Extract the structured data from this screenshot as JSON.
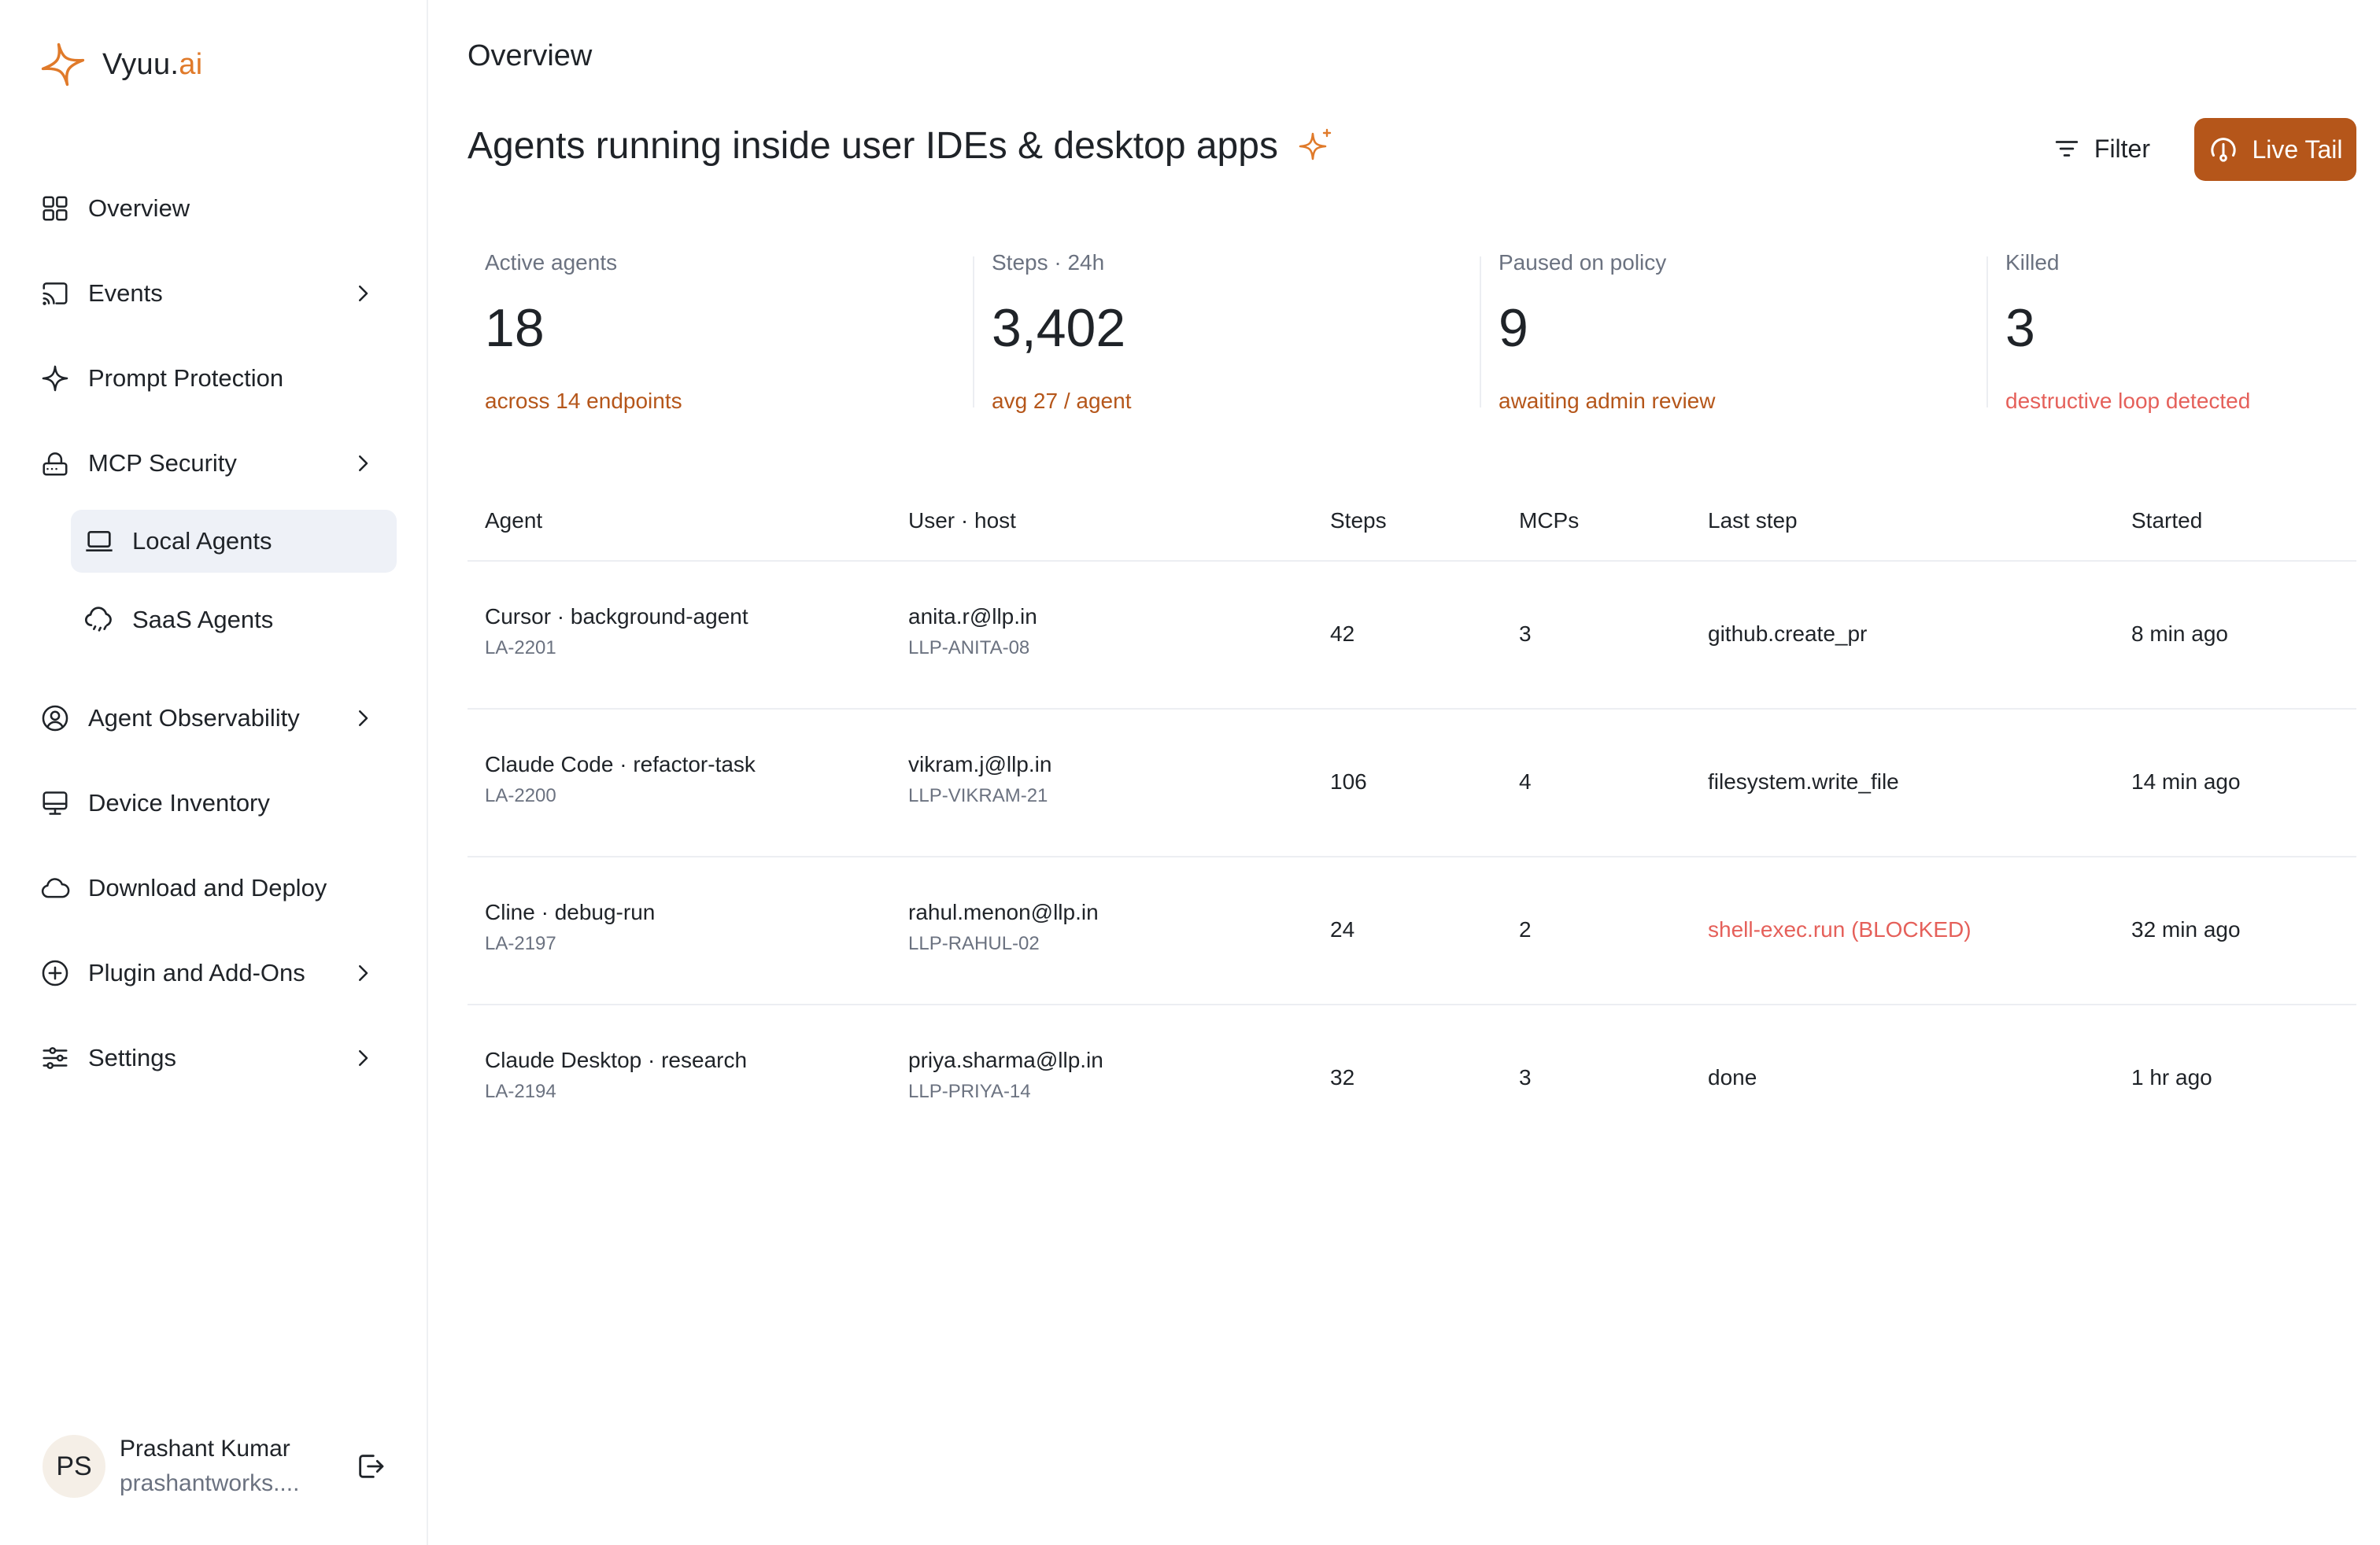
{
  "brand": {
    "name_main": "Vyuu.",
    "name_accent": "ai",
    "accent_color": "#e07a2a"
  },
  "sidebar": {
    "items": [
      {
        "label": "Overview",
        "icon": "grid-icon",
        "has_chevron": false
      },
      {
        "label": "Events",
        "icon": "cast-icon",
        "has_chevron": true
      },
      {
        "label": "Prompt Protection",
        "icon": "sparkle-icon",
        "has_chevron": false
      },
      {
        "label": "MCP Security",
        "icon": "router-icon",
        "has_chevron": true
      },
      {
        "label": "Agent Observability",
        "icon": "user-circle-icon",
        "has_chevron": true
      },
      {
        "label": "Device Inventory",
        "icon": "monitor-icon",
        "has_chevron": false
      },
      {
        "label": "Download and Deploy",
        "icon": "cloud-icon",
        "has_chevron": false
      },
      {
        "label": "Plugin and Add-Ons",
        "icon": "plus-circle-icon",
        "has_chevron": true
      },
      {
        "label": "Settings",
        "icon": "sliders-icon",
        "has_chevron": true
      }
    ],
    "subitems": [
      {
        "label": "Local Agents",
        "icon": "laptop-icon",
        "active": true
      },
      {
        "label": "SaaS Agents",
        "icon": "cloud-rain-icon",
        "active": false
      }
    ]
  },
  "user": {
    "initials": "PS",
    "name": "Prashant Kumar",
    "email": "prashantworks...."
  },
  "header": {
    "page_title": "Overview",
    "heading": "Agents running inside user IDEs & desktop apps",
    "filter_label": "Filter",
    "live_tail_label": "Live Tail",
    "live_tail_color": "#b5561a"
  },
  "stats": [
    {
      "label": "Active agents",
      "value": "18",
      "note": "across 14 endpoints",
      "note_color": "#b5561a"
    },
    {
      "label": "Steps · 24h",
      "value": "3,402",
      "note": "avg 27 / agent",
      "note_color": "#b5561a"
    },
    {
      "label": "Paused on policy",
      "value": "9",
      "note": "awaiting admin review",
      "note_color": "#b5561a"
    },
    {
      "label": "Killed",
      "value": "3",
      "note": "destructive loop detected",
      "note_color": "#e5605a"
    }
  ],
  "table": {
    "columns": [
      "Agent",
      "User · host",
      "Steps",
      "MCPs",
      "Last step",
      "Started"
    ],
    "rows": [
      {
        "agent": "Cursor · background-agent",
        "agent_id": "LA-2201",
        "user": "anita.r@llp.in",
        "host": "LLP-ANITA-08",
        "steps": "42",
        "mcps": "3",
        "last_step": "github.create_pr",
        "blocked": false,
        "started": "8 min ago"
      },
      {
        "agent": "Claude Code · refactor-task",
        "agent_id": "LA-2200",
        "user": "vikram.j@llp.in",
        "host": "LLP-VIKRAM-21",
        "steps": "106",
        "mcps": "4",
        "last_step": "filesystem.write_file",
        "blocked": false,
        "started": "14 min ago"
      },
      {
        "agent": "Cline · debug-run",
        "agent_id": "LA-2197",
        "user": "rahul.menon@llp.in",
        "host": "LLP-RAHUL-02",
        "steps": "24",
        "mcps": "2",
        "last_step": "shell-exec.run (BLOCKED)",
        "blocked": true,
        "started": "32 min ago"
      },
      {
        "agent": "Claude Desktop · research",
        "agent_id": "LA-2194",
        "user": "priya.sharma@llp.in",
        "host": "LLP-PRIYA-14",
        "steps": "32",
        "mcps": "3",
        "last_step": "done",
        "blocked": false,
        "started": "1 hr ago"
      }
    ]
  }
}
